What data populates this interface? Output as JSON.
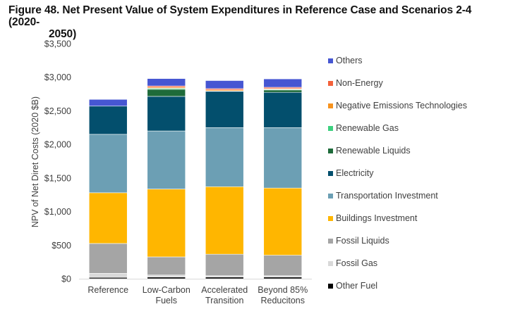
{
  "figure": {
    "title_line1": "Figure 48. Net Present Value of System Expenditures in Reference Case and Scenarios 2-4 (2020-",
    "title_line2": "2050)"
  },
  "chart_data": {
    "type": "bar",
    "stacked": true,
    "title": "Figure 48. Net Present Value of System Expenditures in Reference Case and Scenarios 2-4 (2020-2050)",
    "xlabel": "",
    "ylabel": "NPV of Net Diret Costs (2020 $B)",
    "ylim": [
      0,
      3500
    ],
    "yticks": [
      0,
      500,
      1000,
      1500,
      2000,
      2500,
      3000,
      3500
    ],
    "ytick_labels": [
      "$0",
      "$500",
      "$1,000",
      "$1,500",
      "$2,000",
      "$2,500",
      "$3,000",
      "$3,500"
    ],
    "grid": false,
    "legend_position": "right",
    "categories": [
      [
        "Reference"
      ],
      [
        "Low-Carbon",
        "Fuels"
      ],
      [
        "Accelerated",
        "Transition"
      ],
      [
        "Beyond 85%",
        "Reducitons"
      ]
    ],
    "series": [
      {
        "name": "Other Fuel",
        "color": "#000000",
        "values": [
          20,
          25,
          25,
          25
        ]
      },
      {
        "name": "Fossil Gas",
        "color": "#D9D9D9",
        "values": [
          60,
          30,
          20,
          20
        ]
      },
      {
        "name": "Fossil Liquids",
        "color": "#A5A5A5",
        "values": [
          445,
          270,
          320,
          305
        ]
      },
      {
        "name": "Buildings Investment",
        "color": "#FFB600",
        "values": [
          755,
          1010,
          1005,
          1000
        ]
      },
      {
        "name": "Transportation Investment",
        "color": "#6C9FB4",
        "values": [
          870,
          865,
          880,
          900
        ]
      },
      {
        "name": "Electricity",
        "color": "#034F6D",
        "values": [
          420,
          515,
          540,
          525
        ]
      },
      {
        "name": "Renewable Liquids",
        "color": "#1E6B3A",
        "values": [
          0,
          105,
          0,
          35
        ]
      },
      {
        "name": "Renewable Gas",
        "color": "#3DD17F",
        "values": [
          0,
          15,
          5,
          10
        ]
      },
      {
        "name": "Negative Emissions Technologies",
        "color": "#F7931E",
        "values": [
          0,
          15,
          15,
          10
        ]
      },
      {
        "name": "Non-Energy",
        "color": "#F4613A",
        "values": [
          0,
          20,
          20,
          20
        ]
      },
      {
        "name": "Others",
        "color": "#4656D2",
        "values": [
          100,
          110,
          120,
          125
        ]
      }
    ],
    "legend_order": [
      "Others",
      "Non-Energy",
      "Negative Emissions Technologies",
      "Renewable Gas",
      "Renewable Liquids",
      "Electricity",
      "Transportation Investment",
      "Buildings Investment",
      "Fossil Liquids",
      "Fossil Gas",
      "Other Fuel"
    ]
  }
}
